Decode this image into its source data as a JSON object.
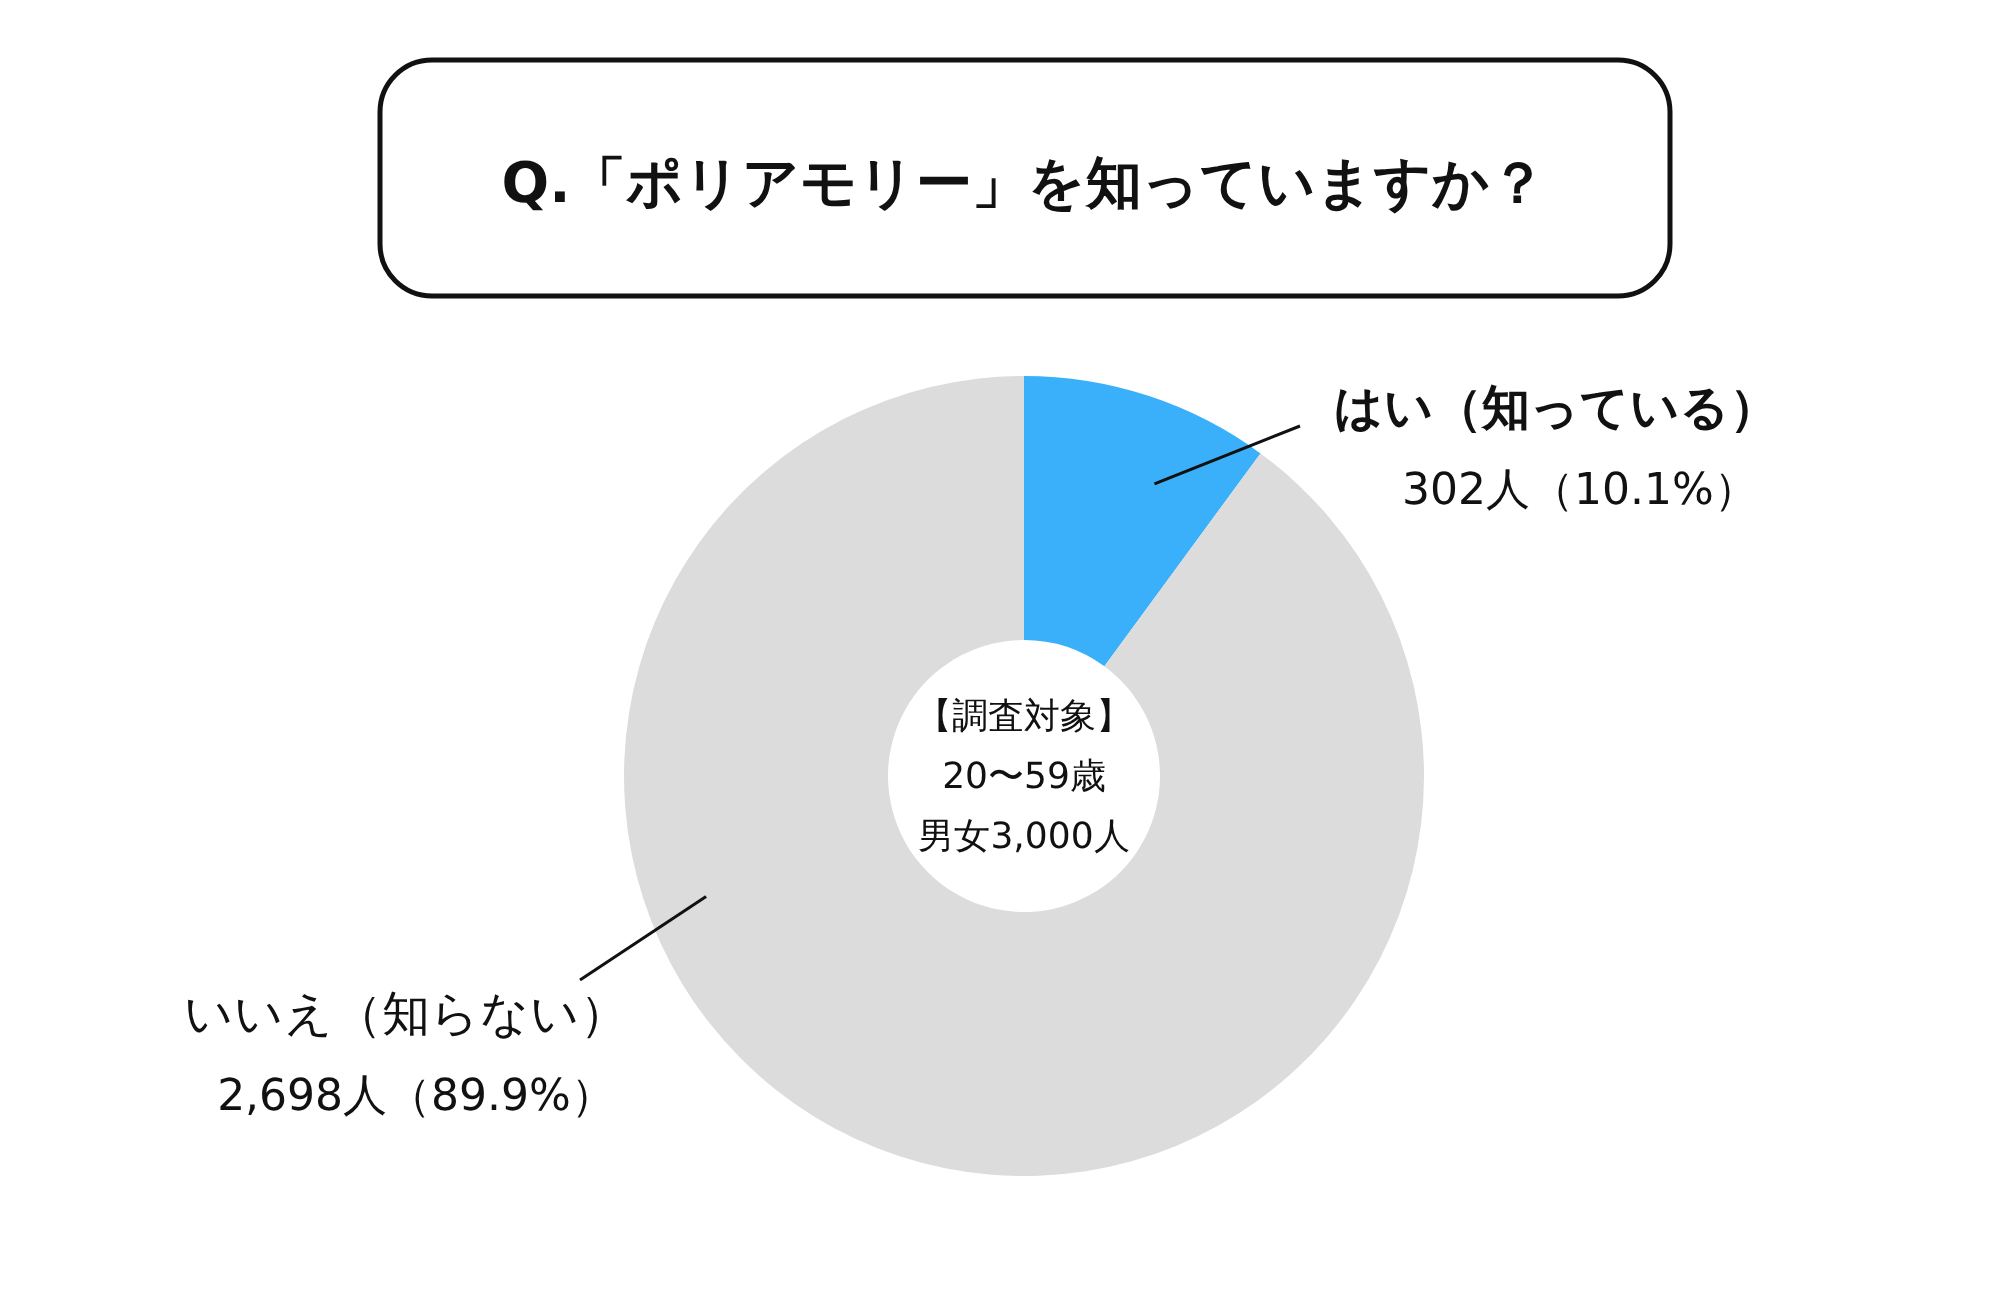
{
  "chart_data": {
    "type": "donut",
    "title": "Q.「ポリアモリー」を知っていますか？",
    "categories": [
      "はい（知っている）",
      "いいえ（知らない）"
    ],
    "values": [
      302,
      2698
    ],
    "colors": [
      "#3ab0fa",
      "#dcdcdc"
    ],
    "value_labels": [
      "302人（10.1%）",
      "2,698人（89.9%）"
    ],
    "annotations": [
      "【調査対象】",
      "20〜59歳",
      "男女3,000人"
    ]
  }
}
